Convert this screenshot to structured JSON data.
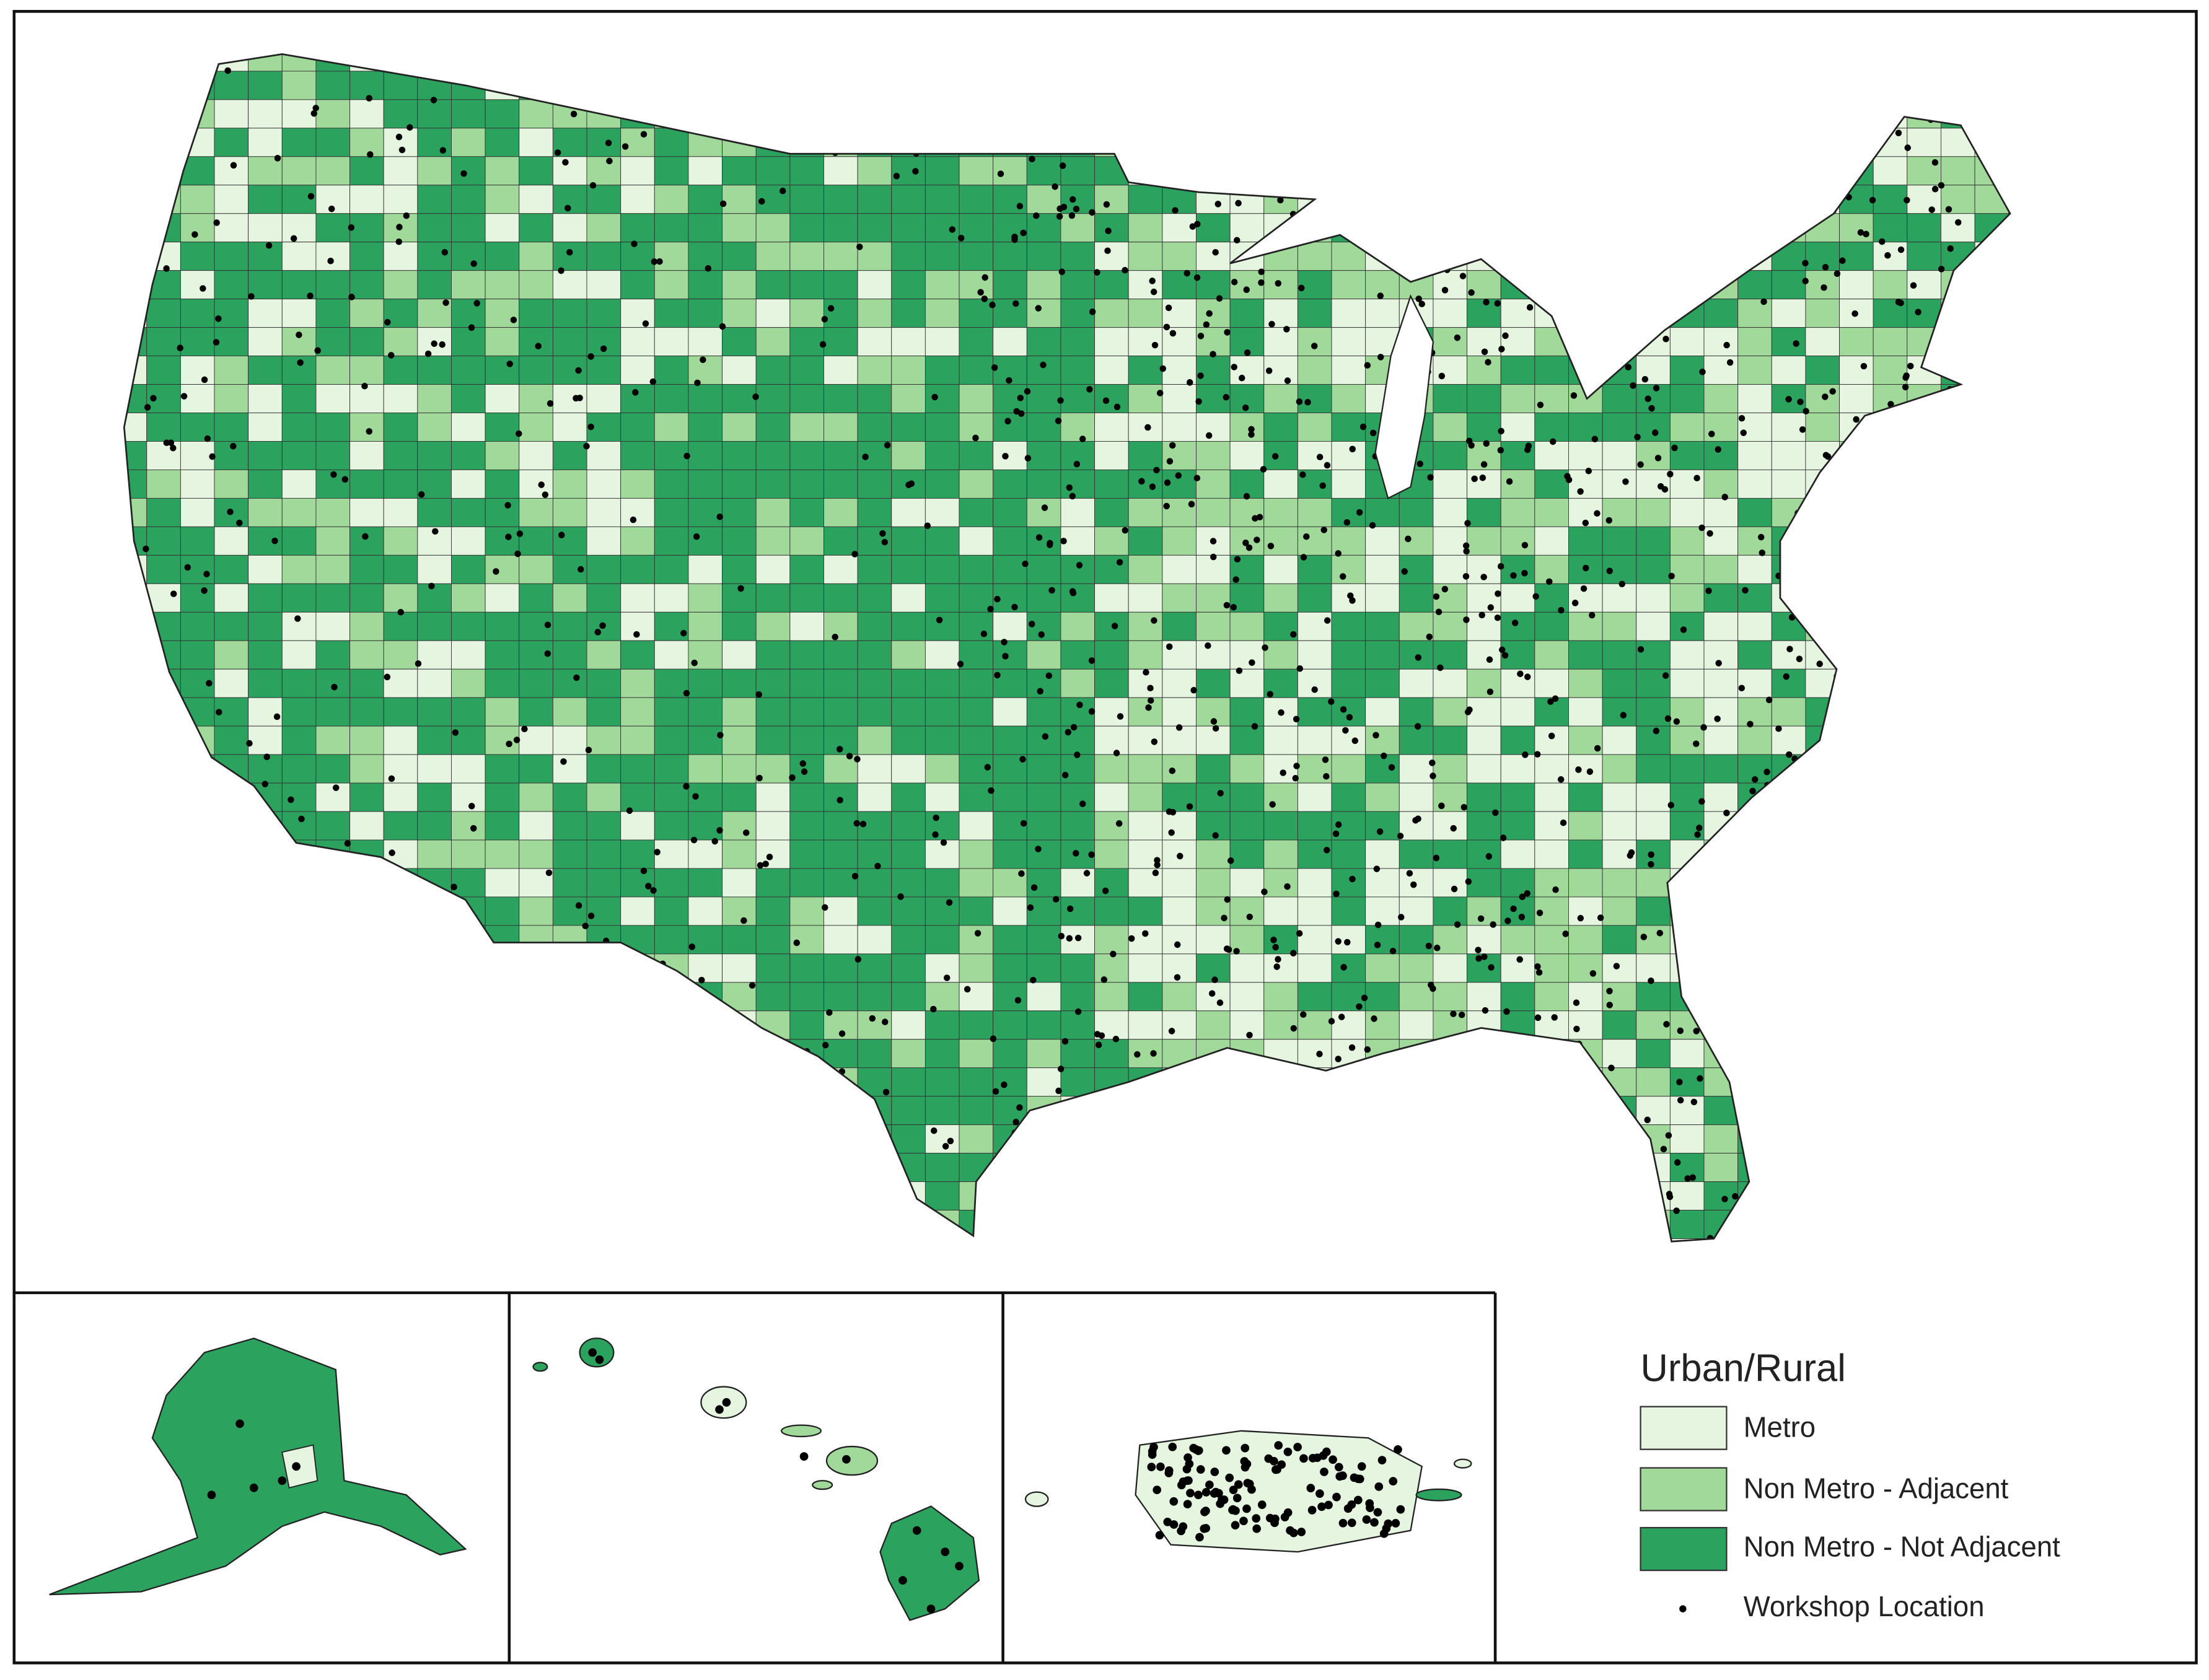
{
  "legend": {
    "title": "Urban/Rural",
    "items": [
      {
        "label": "Metro",
        "color": "#e5f5e0"
      },
      {
        "label": "Non Metro - Adjacent",
        "color": "#a1d99b"
      },
      {
        "label": "Non Metro - Not Adjacent",
        "color": "#2ca25f"
      }
    ],
    "point_label": "Workshop Location"
  }
}
